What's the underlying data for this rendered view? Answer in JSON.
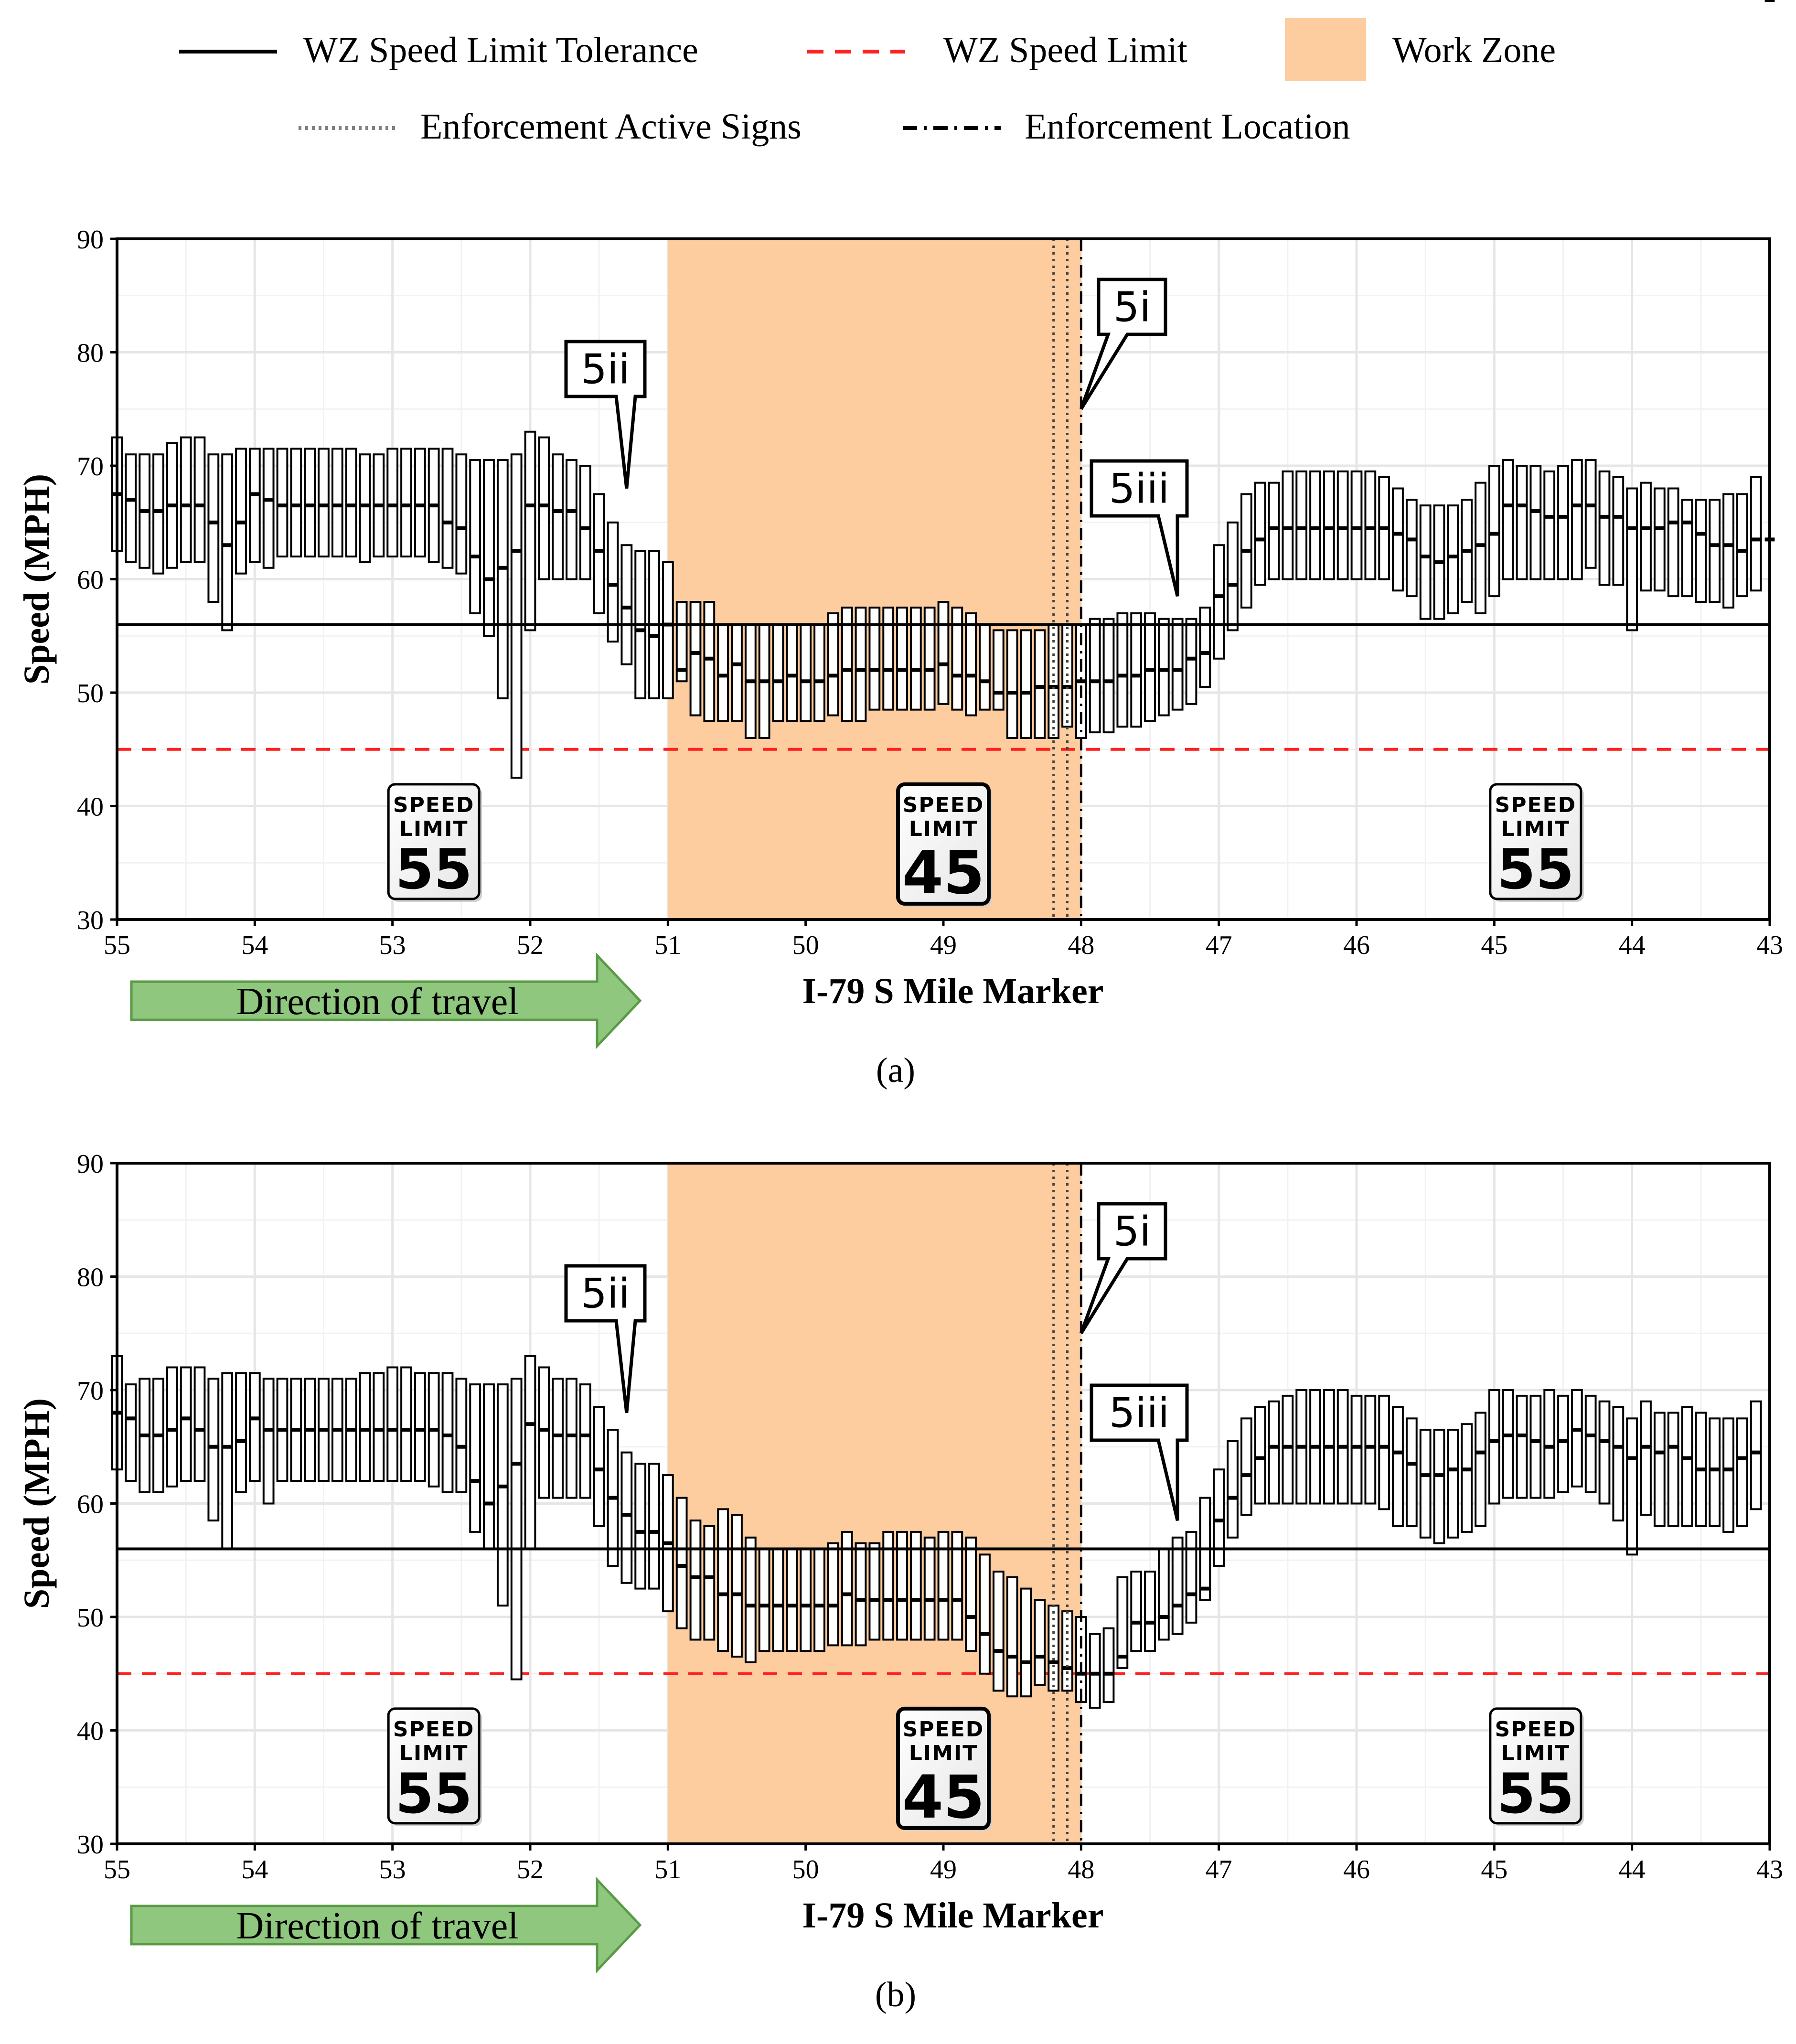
{
  "legend": {
    "items": [
      {
        "label": "WZ Speed Limit Tolerance",
        "style": "solid",
        "color": "#000000"
      },
      {
        "label": "WZ Speed Limit",
        "style": "dashed",
        "color": "#ff2020"
      },
      {
        "label": "Work Zone",
        "style": "fill",
        "color": "#fdcda0"
      },
      {
        "label": "Enforcement Active Signs",
        "style": "dotted",
        "color": "#808080"
      },
      {
        "label": "Enforcement Location",
        "style": "dashdot",
        "color": "#000000"
      }
    ]
  },
  "direction_label": "Direction of travel",
  "colors": {
    "work_zone_fill": "#fdcda0",
    "tolerance_line": "#000000",
    "limit_line": "#ff2020",
    "box_fill": "#ffffff",
    "grid": "#e6e6e6",
    "arrow_fill": "#8fc77e",
    "arrow_stroke": "#5a9a44"
  },
  "signs": [
    {
      "top": "SPEED",
      "mid": "LIMIT",
      "value": "55"
    },
    {
      "top": "SPEED",
      "mid": "LIMIT",
      "value": "45"
    },
    {
      "top": "SPEED",
      "mid": "LIMIT",
      "value": "55"
    }
  ],
  "chart_data": [
    {
      "type": "box",
      "panel_label": "(a)",
      "xlabel": "I-79 S Mile Marker",
      "ylabel": "Speed (MPH)",
      "xlim": [
        55,
        43
      ],
      "ylim": [
        30,
        90
      ],
      "xticks": [
        55,
        54,
        53,
        52,
        51,
        50,
        49,
        48,
        47,
        46,
        45,
        44,
        43
      ],
      "yticks": [
        30,
        40,
        50,
        60,
        70,
        80,
        90
      ],
      "wz_speed_limit_tolerance": 56,
      "wz_speed_limit": 45,
      "work_zone": [
        51,
        48
      ],
      "enforcement_active_signs": [
        48.2,
        48.1
      ],
      "enforcement_location": 48.0,
      "annotations": [
        {
          "text": "5i",
          "x": 48.0,
          "y": 75
        },
        {
          "text": "5ii",
          "x": 51.3,
          "y": 68
        },
        {
          "text": "5iii",
          "x": 47.3,
          "y": 58.5
        }
      ],
      "x": [
        55.0,
        54.9,
        54.8,
        54.7,
        54.6,
        54.5,
        54.4,
        54.3,
        54.2,
        54.1,
        54.0,
        53.9,
        53.8,
        53.7,
        53.6,
        53.5,
        53.4,
        53.3,
        53.2,
        53.1,
        53.0,
        52.9,
        52.8,
        52.7,
        52.6,
        52.5,
        52.4,
        52.3,
        52.2,
        52.1,
        52.0,
        51.9,
        51.8,
        51.7,
        51.6,
        51.5,
        51.4,
        51.3,
        51.2,
        51.1,
        51.0,
        50.9,
        50.8,
        50.7,
        50.6,
        50.5,
        50.4,
        50.3,
        50.2,
        50.1,
        50.0,
        49.9,
        49.8,
        49.7,
        49.6,
        49.5,
        49.4,
        49.3,
        49.2,
        49.1,
        49.0,
        48.9,
        48.8,
        48.7,
        48.6,
        48.5,
        48.4,
        48.3,
        48.2,
        48.1,
        48.0,
        47.9,
        47.8,
        47.7,
        47.6,
        47.5,
        47.4,
        47.3,
        47.2,
        47.1,
        47.0,
        46.9,
        46.8,
        46.7,
        46.6,
        46.5,
        46.4,
        46.3,
        46.2,
        46.1,
        46.0,
        45.9,
        45.8,
        45.7,
        45.6,
        45.5,
        45.4,
        45.3,
        45.2,
        45.1,
        45.0,
        44.9,
        44.8,
        44.7,
        44.6,
        44.5,
        44.4,
        44.3,
        44.2,
        44.1,
        44.0,
        43.9,
        43.8,
        43.7,
        43.6,
        43.5,
        43.4,
        43.3,
        43.2,
        43.1,
        43.0
      ],
      "q1": [
        62.5,
        61.5,
        61.0,
        60.5,
        61.0,
        61.5,
        61.5,
        58.0,
        55.5,
        60.5,
        61.5,
        61.0,
        62.0,
        62.0,
        62.0,
        62.0,
        62.0,
        62.0,
        61.5,
        62.0,
        62.0,
        62.0,
        62.0,
        61.5,
        61.0,
        60.5,
        57.0,
        55.0,
        49.5,
        42.5,
        55.5,
        60.0,
        60.0,
        60.0,
        60.0,
        57.0,
        54.5,
        52.5,
        49.5,
        49.5,
        49.5,
        51.0,
        48.0,
        47.5,
        47.5,
        47.5,
        46.0,
        46.0,
        47.5,
        47.5,
        47.5,
        47.5,
        48.0,
        47.5,
        47.5,
        48.5,
        48.5,
        48.5,
        48.5,
        48.5,
        49.0,
        48.5,
        48.0,
        48.5,
        48.5,
        46.0,
        46.0,
        46.0,
        46.0,
        47.0,
        46.0,
        46.5,
        46.5,
        47.0,
        47.0,
        47.5,
        48.0,
        48.5,
        49.0,
        50.5,
        53.0,
        55.5,
        57.5,
        59.5,
        60.0,
        60.0,
        60.0,
        60.0,
        60.0,
        60.0,
        60.0,
        60.0,
        60.0,
        59.0,
        58.5,
        56.5,
        56.5,
        57.0,
        58.0,
        57.0,
        58.5,
        60.0,
        60.0,
        60.0,
        60.0,
        60.0,
        60.0,
        61.0,
        59.5,
        59.5,
        55.5,
        59.0,
        59.0,
        58.5,
        58.5,
        58.0,
        58.0,
        57.5,
        58.5,
        59.0
      ],
      "med": [
        67.5,
        67.0,
        66.0,
        66.0,
        66.5,
        66.5,
        66.5,
        65.0,
        63.0,
        65.0,
        67.5,
        67.0,
        66.5,
        66.5,
        66.5,
        66.5,
        66.5,
        66.5,
        66.5,
        66.5,
        66.5,
        66.5,
        66.5,
        66.5,
        65.0,
        64.5,
        62.0,
        60.0,
        61.0,
        62.5,
        66.5,
        66.5,
        66.0,
        66.0,
        64.5,
        62.5,
        59.5,
        57.5,
        55.5,
        55.0,
        56.0,
        52.0,
        53.5,
        53.0,
        51.5,
        52.5,
        51.0,
        51.0,
        51.0,
        51.5,
        51.0,
        51.0,
        51.5,
        52.0,
        52.0,
        52.0,
        52.0,
        52.0,
        52.0,
        52.0,
        52.5,
        51.5,
        51.5,
        51.0,
        50.0,
        50.0,
        50.0,
        50.5,
        50.5,
        50.5,
        51.0,
        51.0,
        51.0,
        51.5,
        51.5,
        52.0,
        52.0,
        52.0,
        53.0,
        53.5,
        58.5,
        59.5,
        62.5,
        63.5,
        64.5,
        64.5,
        64.5,
        64.5,
        64.5,
        64.5,
        64.5,
        64.5,
        64.5,
        64.0,
        63.5,
        62.0,
        61.5,
        62.0,
        62.5,
        63.0,
        64.0,
        66.5,
        66.5,
        66.0,
        65.5,
        65.5,
        66.5,
        66.5,
        65.5,
        65.5,
        64.5,
        64.5,
        64.5,
        65.0,
        65.0,
        64.0,
        63.0,
        63.0,
        62.5,
        63.5,
        63.5
      ],
      "q3": [
        72.5,
        71.0,
        71.0,
        71.0,
        72.0,
        72.5,
        72.5,
        71.0,
        71.0,
        71.5,
        71.5,
        71.5,
        71.5,
        71.5,
        71.5,
        71.5,
        71.5,
        71.5,
        71.0,
        71.0,
        71.5,
        71.5,
        71.5,
        71.5,
        71.5,
        71.0,
        70.5,
        70.5,
        70.5,
        71.0,
        73.0,
        72.5,
        71.0,
        70.5,
        70.0,
        67.5,
        65.0,
        63.0,
        62.5,
        62.5,
        61.5,
        58.0,
        58.0,
        58.0,
        56.0,
        56.0,
        56.0,
        56.0,
        56.0,
        56.0,
        56.0,
        56.0,
        57.0,
        57.5,
        57.5,
        57.5,
        57.5,
        57.5,
        57.5,
        57.5,
        58.0,
        57.5,
        57.0,
        56.0,
        55.5,
        55.5,
        55.5,
        55.5,
        56.0,
        56.0,
        56.0,
        56.5,
        56.5,
        57.0,
        57.0,
        57.0,
        56.5,
        56.5,
        56.5,
        57.5,
        63.0,
        65.0,
        67.5,
        68.5,
        68.5,
        69.5,
        69.5,
        69.5,
        69.5,
        69.5,
        69.5,
        69.5,
        69.0,
        68.0,
        67.0,
        66.5,
        66.5,
        66.5,
        67.0,
        68.5,
        70.0,
        70.5,
        70.0,
        70.0,
        69.5,
        70.0,
        70.5,
        70.5,
        69.5,
        69.0,
        68.0,
        68.5,
        68.0,
        68.0,
        67.0,
        67.0,
        67.0,
        67.5,
        67.5,
        69.0
      ]
    },
    {
      "type": "box",
      "panel_label": "(b)",
      "xlabel": "I-79 S Mile Marker",
      "ylabel": "Speed (MPH)",
      "xlim": [
        55,
        43
      ],
      "ylim": [
        30,
        90
      ],
      "xticks": [
        55,
        54,
        53,
        52,
        51,
        50,
        49,
        48,
        47,
        46,
        45,
        44,
        43
      ],
      "yticks": [
        30,
        40,
        50,
        60,
        70,
        80,
        90
      ],
      "wz_speed_limit_tolerance": 56,
      "wz_speed_limit": 45,
      "work_zone": [
        51,
        48
      ],
      "enforcement_active_signs": [
        48.2,
        48.1
      ],
      "enforcement_location": 48.0,
      "annotations": [
        {
          "text": "5i",
          "x": 48.0,
          "y": 75
        },
        {
          "text": "5ii",
          "x": 51.3,
          "y": 68
        },
        {
          "text": "5iii",
          "x": 47.3,
          "y": 58.5
        }
      ],
      "x": [
        55.0,
        54.9,
        54.8,
        54.7,
        54.6,
        54.5,
        54.4,
        54.3,
        54.2,
        54.1,
        54.0,
        53.9,
        53.8,
        53.7,
        53.6,
        53.5,
        53.4,
        53.3,
        53.2,
        53.1,
        53.0,
        52.9,
        52.8,
        52.7,
        52.6,
        52.5,
        52.4,
        52.3,
        52.2,
        52.1,
        52.0,
        51.9,
        51.8,
        51.7,
        51.6,
        51.5,
        51.4,
        51.3,
        51.2,
        51.1,
        51.0,
        50.9,
        50.8,
        50.7,
        50.6,
        50.5,
        50.4,
        50.3,
        50.2,
        50.1,
        50.0,
        49.9,
        49.8,
        49.7,
        49.6,
        49.5,
        49.4,
        49.3,
        49.2,
        49.1,
        49.0,
        48.9,
        48.8,
        48.7,
        48.6,
        48.5,
        48.4,
        48.3,
        48.2,
        48.1,
        48.0,
        47.9,
        47.8,
        47.7,
        47.6,
        47.5,
        47.4,
        47.3,
        47.2,
        47.1,
        47.0,
        46.9,
        46.8,
        46.7,
        46.6,
        46.5,
        46.4,
        46.3,
        46.2,
        46.1,
        46.0,
        45.9,
        45.8,
        45.7,
        45.6,
        45.5,
        45.4,
        45.3,
        45.2,
        45.1,
        45.0,
        44.9,
        44.8,
        44.7,
        44.6,
        44.5,
        44.4,
        44.3,
        44.2,
        44.1,
        44.0,
        43.9,
        43.8,
        43.7,
        43.6,
        43.5,
        43.4,
        43.3,
        43.2,
        43.1,
        43.0
      ],
      "q1": [
        63.0,
        62.0,
        61.0,
        61.0,
        61.5,
        62.0,
        62.0,
        58.5,
        56.0,
        61.0,
        62.0,
        60.0,
        62.0,
        62.0,
        62.0,
        62.0,
        62.0,
        62.0,
        62.0,
        62.0,
        62.0,
        62.0,
        62.0,
        61.5,
        61.0,
        61.0,
        57.5,
        56.0,
        51.0,
        44.5,
        56.0,
        60.5,
        60.5,
        60.5,
        60.5,
        58.0,
        54.5,
        53.0,
        52.5,
        52.5,
        50.5,
        49.0,
        48.0,
        48.0,
        47.0,
        46.5,
        46.0,
        47.0,
        47.0,
        47.0,
        47.0,
        47.0,
        47.5,
        47.5,
        47.5,
        48.0,
        48.0,
        48.0,
        48.0,
        48.0,
        48.0,
        48.0,
        47.0,
        45.0,
        43.5,
        43.0,
        43.0,
        44.0,
        43.5,
        43.5,
        42.5,
        42.0,
        42.5,
        45.5,
        47.0,
        47.0,
        48.0,
        48.5,
        49.5,
        51.5,
        54.5,
        57.0,
        59.0,
        60.0,
        60.0,
        60.0,
        60.0,
        60.0,
        60.0,
        60.0,
        60.0,
        60.0,
        59.5,
        58.0,
        58.0,
        57.0,
        56.5,
        57.0,
        57.5,
        58.0,
        60.0,
        60.5,
        60.5,
        60.5,
        60.5,
        61.0,
        61.5,
        61.0,
        60.0,
        58.5,
        55.5,
        59.0,
        58.0,
        58.0,
        58.0,
        58.0,
        58.0,
        57.5,
        58.0,
        59.5
      ],
      "med": [
        68.0,
        67.5,
        66.0,
        66.0,
        66.5,
        67.5,
        66.5,
        65.0,
        65.0,
        65.5,
        67.5,
        66.5,
        66.5,
        66.5,
        66.5,
        66.5,
        66.5,
        66.5,
        66.5,
        66.5,
        66.5,
        66.5,
        66.5,
        66.5,
        66.0,
        65.0,
        62.0,
        60.0,
        61.5,
        63.5,
        67.0,
        66.5,
        66.0,
        66.0,
        66.0,
        63.0,
        60.5,
        59.0,
        57.5,
        57.5,
        56.5,
        54.5,
        53.5,
        53.5,
        52.0,
        52.0,
        51.0,
        51.0,
        51.0,
        51.0,
        51.0,
        51.0,
        51.0,
        52.0,
        51.5,
        51.5,
        51.5,
        51.5,
        51.5,
        51.5,
        51.5,
        51.5,
        50.0,
        48.5,
        47.0,
        46.5,
        46.0,
        46.5,
        46.0,
        45.5,
        45.0,
        45.0,
        45.0,
        46.5,
        49.5,
        49.5,
        50.0,
        51.0,
        52.0,
        52.5,
        58.5,
        60.5,
        62.5,
        64.0,
        65.0,
        65.0,
        65.0,
        65.0,
        65.0,
        65.0,
        65.0,
        65.0,
        65.0,
        64.5,
        63.5,
        62.5,
        62.5,
        63.0,
        63.0,
        64.5,
        65.5,
        66.0,
        66.0,
        65.5,
        65.0,
        65.5,
        66.5,
        66.0,
        65.5,
        65.0,
        64.0,
        65.0,
        64.5,
        65.0,
        64.0,
        63.0,
        63.0,
        63.0,
        64.0,
        64.5
      ],
      "q3": [
        73.0,
        70.5,
        71.0,
        71.0,
        72.0,
        72.0,
        72.0,
        71.0,
        71.5,
        71.5,
        71.5,
        71.0,
        71.0,
        71.0,
        71.0,
        71.0,
        71.0,
        71.0,
        71.5,
        71.5,
        72.0,
        72.0,
        71.5,
        71.5,
        71.5,
        71.0,
        70.5,
        70.5,
        70.5,
        71.0,
        73.0,
        72.0,
        71.0,
        71.0,
        70.5,
        68.5,
        66.5,
        64.5,
        63.5,
        63.5,
        62.5,
        60.5,
        58.5,
        58.0,
        59.5,
        59.0,
        57.0,
        56.0,
        56.0,
        56.0,
        56.0,
        56.0,
        56.5,
        57.5,
        56.5,
        56.5,
        57.5,
        57.5,
        57.5,
        57.0,
        57.5,
        57.5,
        57.0,
        55.5,
        54.0,
        53.5,
        52.5,
        51.5,
        51.0,
        50.5,
        50.0,
        48.5,
        49.0,
        53.5,
        54.0,
        54.0,
        56.0,
        57.0,
        57.5,
        60.5,
        63.0,
        65.5,
        67.5,
        68.5,
        69.0,
        69.5,
        70.0,
        70.0,
        70.0,
        70.0,
        69.5,
        69.5,
        69.5,
        68.5,
        67.5,
        66.5,
        66.5,
        66.5,
        67.0,
        68.0,
        70.0,
        70.0,
        69.5,
        69.5,
        70.0,
        69.5,
        70.0,
        69.5,
        69.0,
        68.5,
        67.5,
        69.0,
        68.0,
        68.0,
        68.5,
        68.0,
        67.5,
        67.5,
        67.5,
        69.0
      ]
    }
  ]
}
